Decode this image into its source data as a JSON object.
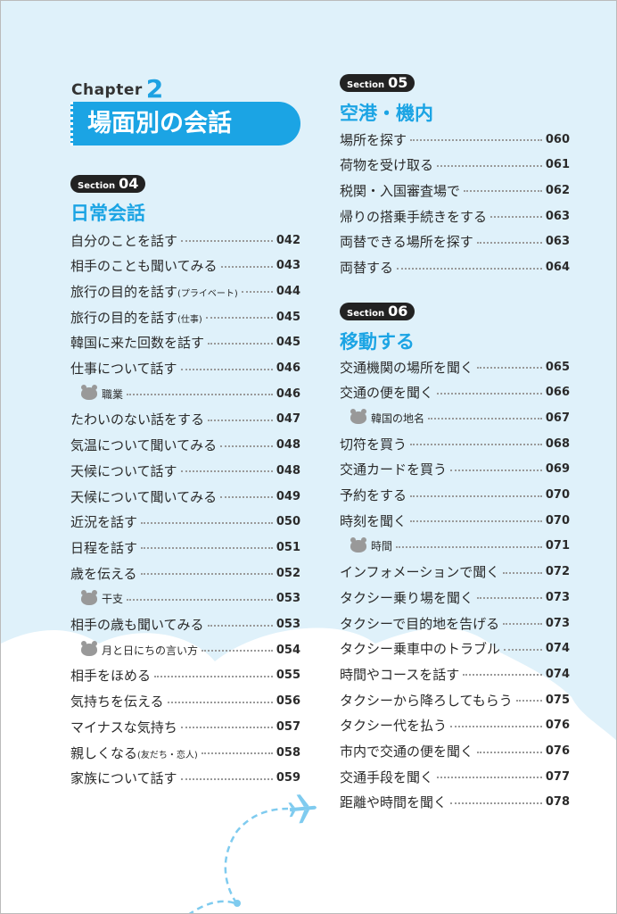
{
  "chapter": {
    "label": "Chapter",
    "number": "2",
    "title": "場面別の会話"
  },
  "colors": {
    "accent": "#1ba4e4",
    "background": "#dff1fa"
  },
  "sections": [
    {
      "label": "Section",
      "number": "04",
      "title": "日常会話",
      "items": [
        {
          "text": "自分のことを話す",
          "page": "042"
        },
        {
          "text": "相手のことも聞いてみる",
          "page": "043"
        },
        {
          "text": "旅行の目的を話す",
          "note": "(プライベート)",
          "page": "044"
        },
        {
          "text": "旅行の目的を話す",
          "note": "(仕事)",
          "page": "045"
        },
        {
          "text": "韓国に来た回数を話す",
          "page": "045"
        },
        {
          "text": "仕事について話す",
          "page": "046"
        },
        {
          "text": "職業",
          "page": "046",
          "sub": true
        },
        {
          "text": "たわいのない話をする",
          "page": "047"
        },
        {
          "text": "気温について聞いてみる",
          "page": "048"
        },
        {
          "text": "天候について話す",
          "page": "048"
        },
        {
          "text": "天候について聞いてみる",
          "page": "049"
        },
        {
          "text": "近況を話す",
          "page": "050"
        },
        {
          "text": "日程を話す",
          "page": "051"
        },
        {
          "text": "歳を伝える",
          "page": "052"
        },
        {
          "text": "干支",
          "page": "053",
          "sub": true
        },
        {
          "text": "相手の歳も聞いてみる",
          "page": "053"
        },
        {
          "text": "月と日にちの言い方",
          "page": "054",
          "sub": true
        },
        {
          "text": "相手をほめる",
          "page": "055"
        },
        {
          "text": "気持ちを伝える",
          "page": "056"
        },
        {
          "text": "マイナスな気持ち",
          "page": "057"
        },
        {
          "text": "親しくなる",
          "note": "(友だち・恋人)",
          "page": "058"
        },
        {
          "text": "家族について話す",
          "page": "059"
        }
      ]
    },
    {
      "label": "Section",
      "number": "05",
      "title": "空港・機内",
      "items": [
        {
          "text": "場所を探す",
          "page": "060"
        },
        {
          "text": "荷物を受け取る",
          "page": "061"
        },
        {
          "text": "税関・入国審査場で",
          "page": "062"
        },
        {
          "text": "帰りの搭乗手続きをする",
          "page": "063"
        },
        {
          "text": "両替できる場所を探す",
          "page": "063"
        },
        {
          "text": "両替する",
          "page": "064"
        }
      ]
    },
    {
      "label": "Section",
      "number": "06",
      "title": "移動する",
      "items": [
        {
          "text": "交通機関の場所を聞く",
          "page": "065"
        },
        {
          "text": "交通の便を聞く",
          "page": "066"
        },
        {
          "text": "韓国の地名",
          "page": "067",
          "sub": true
        },
        {
          "text": "切符を買う",
          "page": "068"
        },
        {
          "text": "交通カードを買う",
          "page": "069"
        },
        {
          "text": "予約をする",
          "page": "070"
        },
        {
          "text": "時刻を聞く",
          "page": "070"
        },
        {
          "text": "時間",
          "page": "071",
          "sub": true
        },
        {
          "text": "インフォメーションで聞く",
          "page": "072"
        },
        {
          "text": "タクシー乗り場を聞く",
          "page": "073"
        },
        {
          "text": "タクシーで目的地を告げる",
          "page": "073"
        },
        {
          "text": "タクシー乗車中のトラブル",
          "page": "074"
        },
        {
          "text": "時間やコースを話す",
          "page": "074"
        },
        {
          "text": "タクシーから降ろしてもらう",
          "page": "075"
        },
        {
          "text": "タクシー代を払う",
          "page": "076"
        },
        {
          "text": "市内で交通の便を聞く",
          "page": "076"
        },
        {
          "text": "交通手段を聞く",
          "page": "077"
        },
        {
          "text": "距離や時間を聞く",
          "page": "078"
        }
      ]
    }
  ]
}
